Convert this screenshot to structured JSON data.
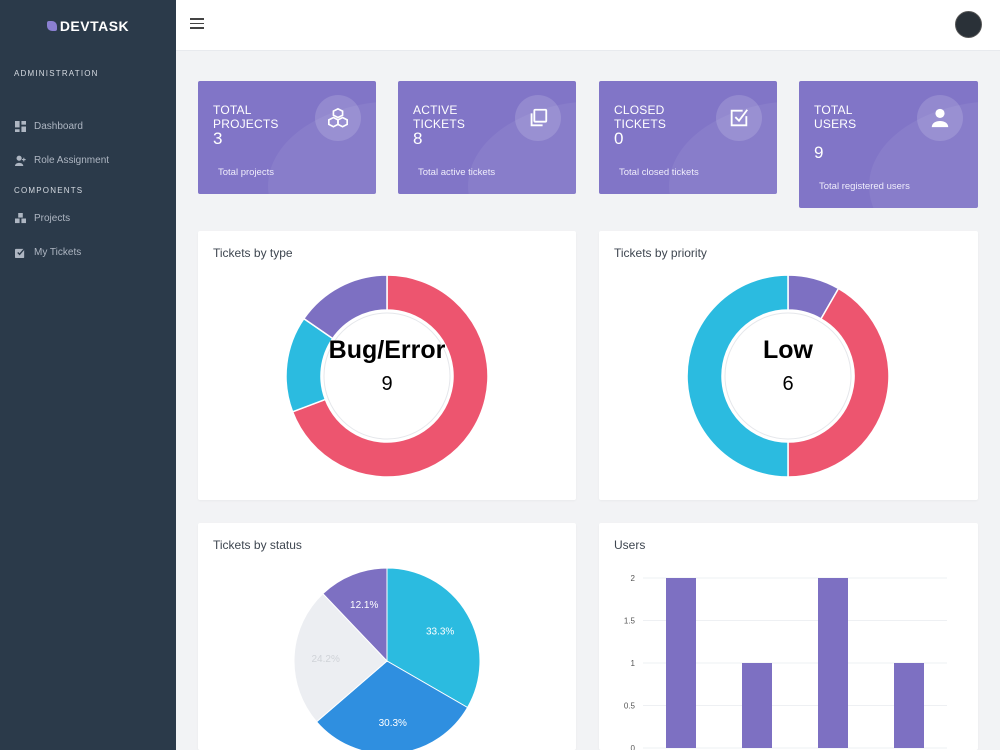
{
  "sidebar": {
    "brand": "DEVTASK",
    "sections": [
      {
        "label": "ADMINISTRATION"
      },
      {
        "label": "COMPONENTS"
      }
    ],
    "items": [
      {
        "label": "Dashboard",
        "icon": "dashboard-icon"
      },
      {
        "label": "Role Assignment",
        "icon": "user-plus-icon"
      },
      {
        "label": "Projects",
        "icon": "projects-icon"
      },
      {
        "label": "My Tickets",
        "icon": "tickets-icon"
      }
    ]
  },
  "cards": [
    {
      "title": "TOTAL PROJECTS",
      "value": "3",
      "sub": "Total projects",
      "icon": "cubes-icon"
    },
    {
      "title": "ACTIVE TICKETS",
      "value": "8",
      "sub": "Total active tickets",
      "icon": "copy-icon"
    },
    {
      "title": "CLOSED TICKETS",
      "value": "0",
      "sub": "Total closed tickets",
      "icon": "checked-calendar-icon"
    },
    {
      "title": "TOTAL USERS",
      "value": "9",
      "sub": "Total registered users",
      "icon": "user-icon"
    }
  ],
  "colors": {
    "sidebar": "#2b3a4a",
    "card": "#8175c7",
    "pink": "#ed556f",
    "purple": "#7d70c2",
    "cyan": "#2bbbe0",
    "blue": "#2f8fe0",
    "lightgray": "#eceef2"
  },
  "chart_data": [
    {
      "type": "pie",
      "variant": "doughnut",
      "title": "Tickets by type",
      "center_label": "Bug/Error",
      "center_value": "9",
      "slices": [
        {
          "value": 9,
          "color": "#ed556f"
        },
        {
          "value": 2,
          "color": "#2bbbe0"
        },
        {
          "value": 2,
          "color": "#7d70c2"
        }
      ]
    },
    {
      "type": "pie",
      "variant": "doughnut",
      "title": "Tickets by priority",
      "center_label": "Low",
      "center_value": "6",
      "slices": [
        {
          "value": 1,
          "color": "#7d70c2"
        },
        {
          "value": 5,
          "color": "#ed556f"
        },
        {
          "value": 6,
          "color": "#2bbbe0"
        }
      ]
    },
    {
      "type": "pie",
      "title": "Tickets by status",
      "slices": [
        {
          "label": "33.3%",
          "value": 33.3,
          "color": "#2bbbe0"
        },
        {
          "label": "30.3%",
          "value": 30.3,
          "color": "#2f8fe0"
        },
        {
          "label": "24.2%",
          "value": 24.2,
          "color": "#eceef2"
        },
        {
          "label": "12.1%",
          "value": 12.1,
          "color": "#7d70c2"
        }
      ]
    },
    {
      "type": "bar",
      "title": "Users",
      "values": [
        2,
        1,
        2,
        1
      ],
      "ylim": [
        0,
        2
      ],
      "yticks": [
        "0",
        "0.5",
        "1",
        "1.5",
        "2"
      ],
      "grid": true
    }
  ]
}
